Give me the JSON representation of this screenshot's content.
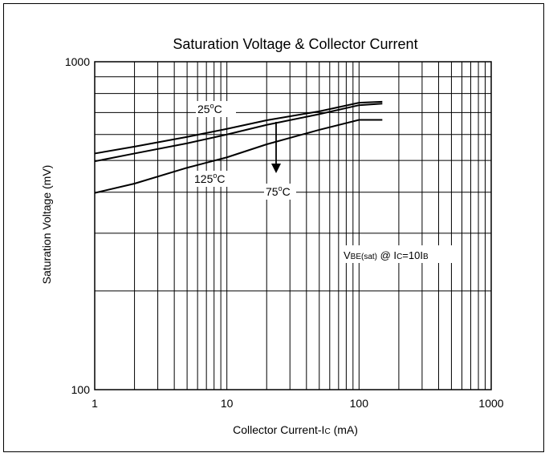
{
  "chart_data": {
    "type": "line",
    "title": "Saturation Voltage & Collector Current",
    "xlabel": "Collector Current-IC (mA)",
    "xlabel_parts": {
      "prefix": "Collector Current-I",
      "sub": "C",
      "suffix": " (mA)"
    },
    "ylabel": "Saturation Voltage (mV)",
    "x_scale": "log",
    "y_scale": "log",
    "xlim": [
      1,
      1000
    ],
    "ylim": [
      100,
      1000
    ],
    "x_ticks": [
      "1",
      "10",
      "100",
      "1000"
    ],
    "y_ticks": [
      "100",
      "1000"
    ],
    "grid": true,
    "legend": "none",
    "annotation": "VBE(sat) @ IC=10IB",
    "annotation_parts": [
      "V",
      "BE(sat)",
      " @ I",
      "C",
      "=10I",
      "B"
    ],
    "series": [
      {
        "label": "25°C",
        "label_base": "25",
        "label_unit": "C",
        "x": [
          1,
          2,
          5,
          10,
          20,
          50,
          100,
          150
        ],
        "y": [
          525,
          551,
          590,
          624,
          663,
          706,
          750,
          755
        ]
      },
      {
        "label": "75°C",
        "label_base": "75",
        "label_unit": "C",
        "x": [
          1,
          2,
          5,
          10,
          20,
          50,
          100,
          150
        ],
        "y": [
          497,
          525,
          564,
          600,
          642,
          692,
          737,
          745
        ]
      },
      {
        "label": "125°C",
        "label_base": "125",
        "label_unit": "C",
        "x": [
          1,
          2,
          5,
          10,
          20,
          50,
          100,
          150
        ],
        "y": [
          398,
          425,
          475,
          511,
          560,
          620,
          665,
          665
        ]
      }
    ]
  }
}
